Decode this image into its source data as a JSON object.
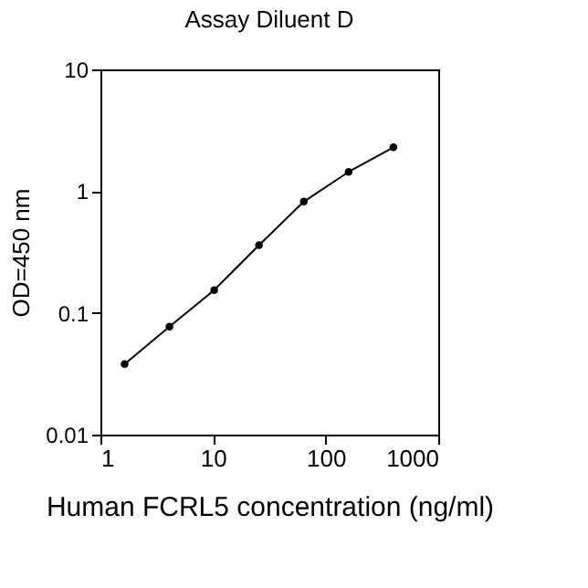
{
  "chart_data": {
    "type": "line",
    "title": "Assay Diluent D",
    "xlabel": "Human FCRL5 concentration (ng/ml)",
    "ylabel": "OD=450 nm",
    "x": [
      1.64,
      4.1,
      10.24,
      25.6,
      64,
      160,
      400
    ],
    "series": [
      {
        "color": "#000000",
        "values": [
          0.038,
          0.077,
          0.154,
          0.36,
          0.82,
          1.44,
          2.29
        ]
      }
    ],
    "log": "xy",
    "xlim": [
      1,
      1000
    ],
    "xticks": [
      1,
      10,
      100,
      1000
    ],
    "ylim": [
      0.01,
      10
    ],
    "yticks": [
      0.01,
      0.1,
      1,
      10
    ],
    "marker": "circle",
    "line_style": "solid",
    "grid": false
  }
}
